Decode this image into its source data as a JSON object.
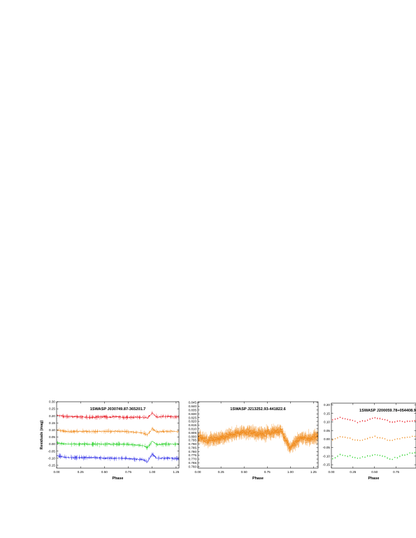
{
  "chart_data": [
    {
      "type": "line",
      "title": "1SWASP J030749.87-365201.7",
      "xlabel": "Phase",
      "ylabel": "Residuals (mag)",
      "xlim": [
        0.0,
        1.28
      ],
      "ylim": [
        -0.17,
        0.3
      ],
      "xticks": [
        "0.00",
        "0.25",
        "0.50",
        "0.75",
        "1.00",
        "1.25"
      ],
      "yticks": [
        "-0.15",
        "-0.10",
        "-0.05",
        "0.00",
        "0.05",
        "0.10",
        "0.15",
        "0.20",
        "0.25",
        "0.30"
      ],
      "grid": false,
      "legend": "none",
      "series": [
        {
          "color": "#e8141e",
          "x": [
            0.0,
            0.1,
            0.2,
            0.3,
            0.4,
            0.5,
            0.55,
            0.6,
            0.7,
            0.8,
            0.9,
            0.95,
            1.0,
            1.05,
            1.1,
            1.2,
            1.28
          ],
          "y": [
            0.205,
            0.195,
            0.195,
            0.19,
            0.19,
            0.195,
            0.19,
            0.195,
            0.19,
            0.19,
            0.19,
            0.185,
            0.22,
            0.19,
            0.195,
            0.195,
            0.19
          ]
        },
        {
          "color": "#f08c1e",
          "x": [
            0.0,
            0.1,
            0.2,
            0.3,
            0.4,
            0.5,
            0.6,
            0.7,
            0.8,
            0.9,
            0.95,
            1.0,
            1.05,
            1.1,
            1.2,
            1.28
          ],
          "y": [
            0.1,
            0.09,
            0.09,
            0.09,
            0.09,
            0.09,
            0.09,
            0.09,
            0.085,
            0.08,
            0.065,
            0.11,
            0.085,
            0.09,
            0.09,
            0.09
          ]
        },
        {
          "color": "#28d228",
          "x": [
            0.0,
            0.1,
            0.2,
            0.3,
            0.4,
            0.5,
            0.6,
            0.7,
            0.8,
            0.9,
            0.95,
            1.0,
            1.05,
            1.1,
            1.2,
            1.28
          ],
          "y": [
            0.01,
            0.0,
            0.0,
            0.0,
            0.0,
            0.0,
            0.0,
            0.0,
            -0.005,
            -0.01,
            -0.025,
            0.02,
            -0.005,
            0.0,
            0.0,
            0.0
          ]
        },
        {
          "color": "#2828e6",
          "x": [
            0.0,
            0.1,
            0.2,
            0.3,
            0.4,
            0.5,
            0.6,
            0.7,
            0.8,
            0.9,
            0.95,
            1.0,
            1.05,
            1.1,
            1.2,
            1.28
          ],
          "y": [
            -0.08,
            -0.095,
            -0.095,
            -0.095,
            -0.095,
            -0.1,
            -0.1,
            -0.1,
            -0.105,
            -0.11,
            -0.125,
            -0.07,
            -0.1,
            -0.1,
            -0.1,
            -0.105
          ]
        }
      ]
    },
    {
      "type": "scatter",
      "title": "1SWASP J213252.93-441822.6",
      "xlabel": "Phase",
      "ylabel": "",
      "xlim": [
        0.0,
        1.3
      ],
      "ylim": [
        0.758,
        0.846
      ],
      "xticks": [
        "0.00",
        "0.25",
        "0.50",
        "0.75",
        "1.00",
        "1.25"
      ],
      "yticks": [
        "0.760",
        "0.765",
        "0.770",
        "0.775",
        "0.780",
        "0.785",
        "0.790",
        "0.795",
        "0.800",
        "0.805",
        "0.810",
        "0.815",
        "0.820",
        "0.825",
        "0.830",
        "0.835",
        "0.840",
        "0.845"
      ],
      "grid": false,
      "legend": "none",
      "series": [
        {
          "color": "#f08c1e",
          "x": [
            0.0,
            0.1,
            0.2,
            0.3,
            0.4,
            0.5,
            0.6,
            0.7,
            0.8,
            0.9,
            0.95,
            1.0,
            1.1,
            1.2,
            1.3
          ],
          "y": [
            0.8,
            0.795,
            0.797,
            0.8,
            0.803,
            0.806,
            0.805,
            0.803,
            0.806,
            0.808,
            0.795,
            0.785,
            0.798,
            0.797,
            0.8
          ]
        }
      ]
    },
    {
      "type": "scatter",
      "title": "1SWASP J200059.78+054408.9",
      "xlabel": "Phase",
      "ylabel": "",
      "xlim": [
        0.0,
        0.98
      ],
      "ylim": [
        -0.17,
        0.21
      ],
      "xticks": [
        "0.00",
        "0.25",
        "0.50",
        "0.75"
      ],
      "yticks": [
        "-0.15",
        "-0.10",
        "-0.05",
        "0.00",
        "0.05",
        "0.10",
        "0.15",
        "0.20"
      ],
      "grid": false,
      "legend": "none",
      "series": [
        {
          "color": "#e8141e",
          "x": [
            0.0,
            0.1,
            0.2,
            0.3,
            0.4,
            0.5,
            0.6,
            0.7,
            0.8,
            0.9,
            0.97
          ],
          "y": [
            0.11,
            0.125,
            0.115,
            0.1,
            0.11,
            0.125,
            0.115,
            0.1,
            0.105,
            0.1,
            0.11
          ]
        },
        {
          "color": "#f08c1e",
          "x": [
            0.0,
            0.1,
            0.2,
            0.3,
            0.4,
            0.5,
            0.6,
            0.7,
            0.8,
            0.9,
            0.97
          ],
          "y": [
            -0.01,
            0.015,
            0.005,
            -0.01,
            0.0,
            0.015,
            0.005,
            -0.01,
            0.005,
            0.015,
            0.02
          ]
        },
        {
          "color": "#28d228",
          "x": [
            0.0,
            0.1,
            0.2,
            0.3,
            0.4,
            0.5,
            0.6,
            0.7,
            0.8,
            0.9,
            0.97
          ],
          "y": [
            -0.12,
            -0.09,
            -0.1,
            -0.11,
            -0.105,
            -0.09,
            -0.1,
            -0.12,
            -0.1,
            -0.085,
            -0.08
          ]
        }
      ]
    }
  ]
}
